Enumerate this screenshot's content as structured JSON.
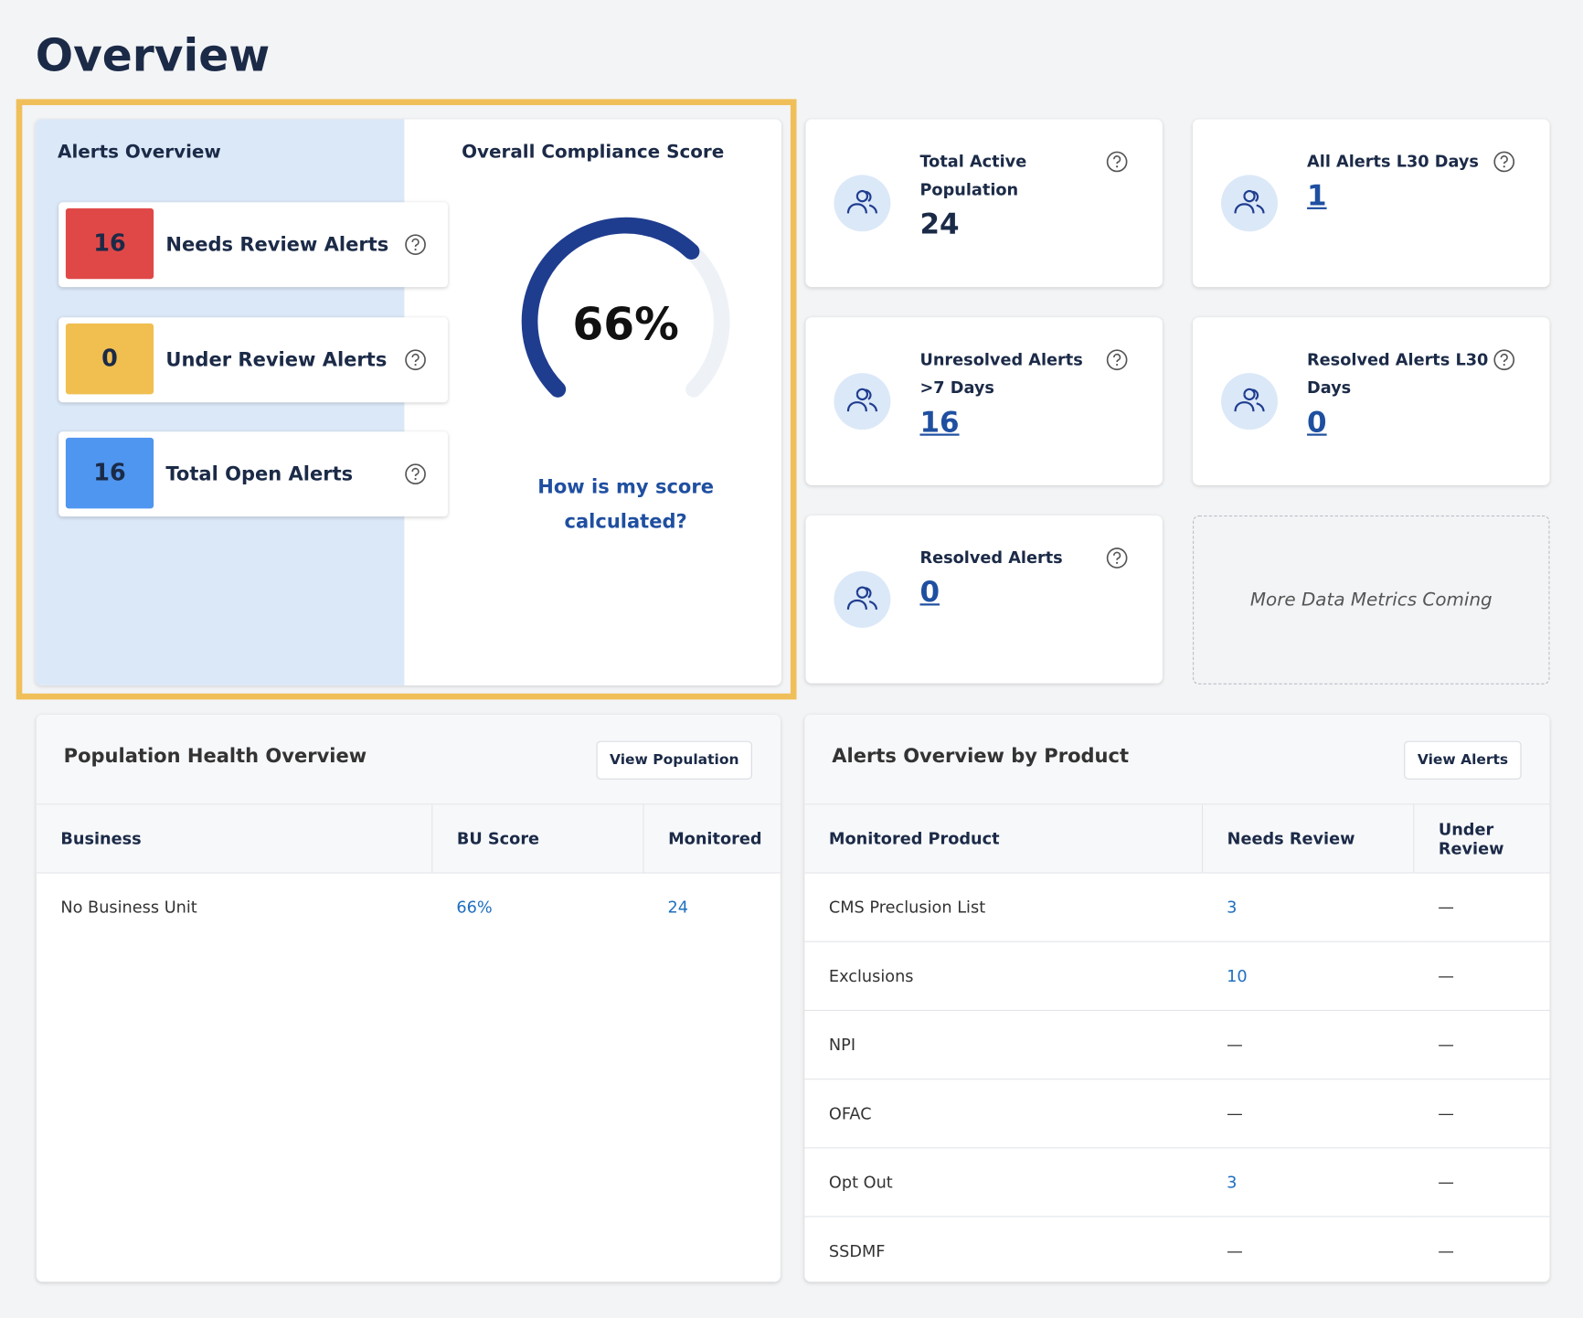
{
  "page": {
    "title": "Overview"
  },
  "alerts_overview": {
    "title": "Alerts Overview",
    "items": [
      {
        "count": 16,
        "label": "Needs Review Alerts"
      },
      {
        "count": 0,
        "label": "Under Review Alerts"
      },
      {
        "count": 16,
        "label": "Total Open Alerts"
      }
    ]
  },
  "compliance": {
    "title": "Overall Compliance Score",
    "score": {
      "value": 66,
      "label": "66%"
    },
    "link": "How is my score calculated?"
  },
  "metrics": [
    {
      "label": "Total Active Population",
      "value": 24
    },
    {
      "label": "All Alerts L30 Days",
      "value": 1
    },
    {
      "label": "Unresolved Alerts >7 Days",
      "value": 16
    },
    {
      "label": "Resolved Alerts L30 Days",
      "value": 0
    },
    {
      "label": "Resolved Alerts",
      "value": 0
    }
  ],
  "placeholder": "More Data Metrics Coming",
  "population_health": {
    "title": "Population Health Overview",
    "button": "View Population",
    "columns": [
      "Business",
      "BU Score",
      "Monitored"
    ],
    "rows": [
      [
        "No Business Unit",
        "66%",
        "24"
      ]
    ]
  },
  "alerts_by_product": {
    "title": "Alerts Overview by Product",
    "button": "View Alerts",
    "columns": [
      "Monitored Product",
      "Needs Review",
      "Under Review"
    ],
    "rows": [
      [
        "CMS Preclusion List",
        "3",
        "—"
      ],
      [
        "Exclusions",
        "10",
        "—"
      ],
      [
        "NPI",
        "—",
        "—"
      ],
      [
        "OFAC",
        "—",
        "—"
      ],
      [
        "Opt Out",
        "3",
        "—"
      ],
      [
        "SSDMF",
        "—",
        "—"
      ]
    ]
  }
}
